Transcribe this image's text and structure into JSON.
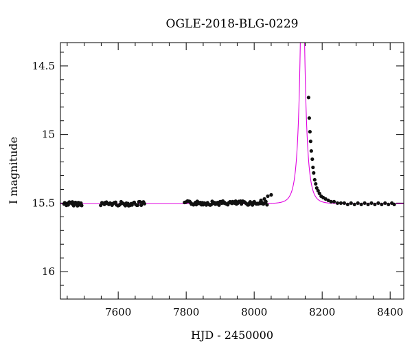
{
  "chart_data": {
    "type": "scatter",
    "title": "OGLE-2018-BLG-0229",
    "xlabel": "HJD - 2450000",
    "ylabel": "I magnitude",
    "xlim": [
      7430,
      8440
    ],
    "ylim": [
      16.2,
      14.33
    ],
    "y_inverted": true,
    "x_ticks": [
      7600,
      7800,
      8000,
      8200,
      8400
    ],
    "x_tick_labels": [
      "7600",
      "7800",
      "8000",
      "8200",
      "8400"
    ],
    "y_ticks": [
      14.5,
      15,
      15.5,
      16
    ],
    "y_tick_labels": [
      "14.5",
      "15",
      "15.5",
      "16"
    ],
    "grid": false,
    "colors": {
      "model": "#e000e0",
      "points": "#111111"
    },
    "model": {
      "name": "",
      "baseline_mag": 15.505,
      "t0": 8142,
      "tE": 18,
      "u0": 0.055
    },
    "series": [
      {
        "name": "",
        "segment_clusters": [
          {
            "x_range": [
              7440,
              7495
            ],
            "y_center": 15.505,
            "n": 22
          },
          {
            "x_range": [
              7548,
              7680
            ],
            "y_center": 15.505,
            "n": 40
          },
          {
            "x_range": [
              7795,
              8040
            ],
            "y_center": 15.5,
            "n": 85
          }
        ],
        "points": [
          {
            "x": 8020,
            "y": 15.48
          },
          {
            "x": 8030,
            "y": 15.47
          },
          {
            "x": 8040,
            "y": 15.45
          },
          {
            "x": 8050,
            "y": 15.44
          },
          {
            "x": 8160,
            "y": 14.73
          },
          {
            "x": 8162,
            "y": 14.88
          },
          {
            "x": 8164,
            "y": 14.98
          },
          {
            "x": 8166,
            "y": 15.05
          },
          {
            "x": 8168,
            "y": 15.12
          },
          {
            "x": 8171,
            "y": 15.18
          },
          {
            "x": 8173,
            "y": 15.24
          },
          {
            "x": 8175,
            "y": 15.28
          },
          {
            "x": 8178,
            "y": 15.33
          },
          {
            "x": 8181,
            "y": 15.36
          },
          {
            "x": 8184,
            "y": 15.39
          },
          {
            "x": 8188,
            "y": 15.41
          },
          {
            "x": 8192,
            "y": 15.43
          },
          {
            "x": 8197,
            "y": 15.45
          },
          {
            "x": 8203,
            "y": 15.46
          },
          {
            "x": 8210,
            "y": 15.47
          },
          {
            "x": 8218,
            "y": 15.48
          },
          {
            "x": 8226,
            "y": 15.49
          },
          {
            "x": 8235,
            "y": 15.49
          },
          {
            "x": 8245,
            "y": 15.5
          },
          {
            "x": 8255,
            "y": 15.5
          },
          {
            "x": 8265,
            "y": 15.5
          },
          {
            "x": 8275,
            "y": 15.51
          },
          {
            "x": 8285,
            "y": 15.5
          },
          {
            "x": 8295,
            "y": 15.51
          },
          {
            "x": 8305,
            "y": 15.5
          },
          {
            "x": 8315,
            "y": 15.51
          },
          {
            "x": 8325,
            "y": 15.5
          },
          {
            "x": 8335,
            "y": 15.51
          },
          {
            "x": 8345,
            "y": 15.5
          },
          {
            "x": 8355,
            "y": 15.51
          },
          {
            "x": 8365,
            "y": 15.5
          },
          {
            "x": 8375,
            "y": 15.51
          },
          {
            "x": 8385,
            "y": 15.5
          },
          {
            "x": 8395,
            "y": 15.51
          },
          {
            "x": 8405,
            "y": 15.5
          },
          {
            "x": 8412,
            "y": 15.51
          }
        ]
      }
    ]
  }
}
